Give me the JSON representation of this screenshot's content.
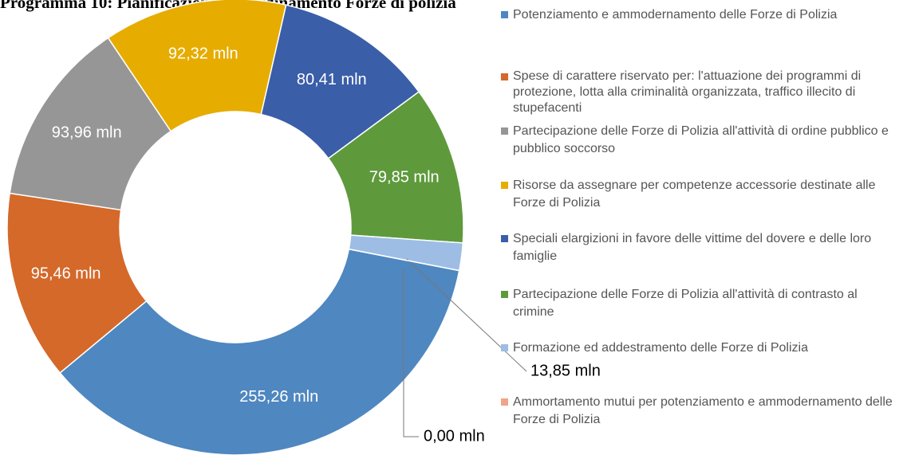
{
  "chart_data": {
    "type": "donut",
    "title": "Programma 10: Pianificazione e coordinamento Forze di polizia",
    "categories": [
      "Potenziamento e ammodernamento delle Forze di Polizia",
      "Spese di carattere riservato per: l'attuazione dei programmi di protezione, lotta alla criminalità organizzata, traffico illecito di stupefacenti",
      "Partecipazione delle Forze di Polizia all'attività di ordine pubblico e pubblico soccorso",
      "Risorse da assegnare per competenze accessorie destinate alle Forze di Polizia",
      "Speciali elargizioni in favore delle vittime del dovere e delle loro famiglie",
      "Partecipazione delle Forze di Polizia all'attività di contrasto al crimine",
      "Formazione ed addestramento delle Forze di Polizia",
      "Ammortamento mutui per potenziamento e ammodernamento delle Forze di Polizia"
    ],
    "values": [
      255.26,
      95.46,
      93.96,
      92.32,
      80.41,
      79.85,
      13.85,
      0.0
    ],
    "value_labels": [
      "255,26 mln",
      "95,46 mln",
      "93,96 mln",
      "92,32 mln",
      "80,41 mln",
      "79,85 mln",
      "13,85 mln",
      "0,00 mln"
    ],
    "colors": [
      "#4f87c0",
      "#d4692a",
      "#969696",
      "#e6ac00",
      "#3a5ea8",
      "#5e9a3c",
      "#9dbde4",
      "#f0a48a"
    ],
    "legend": "right"
  }
}
